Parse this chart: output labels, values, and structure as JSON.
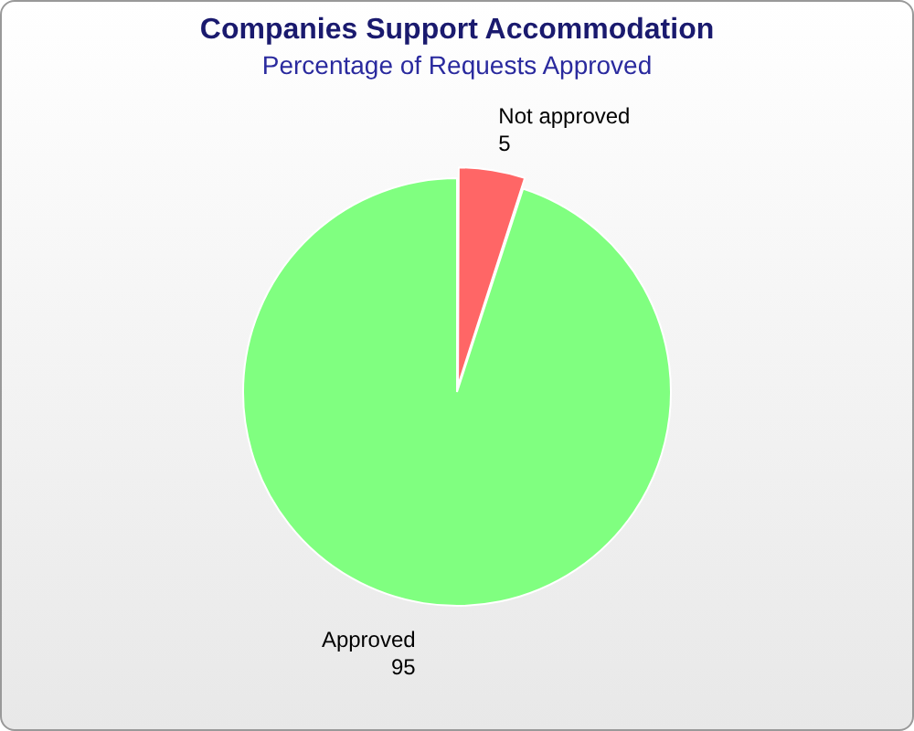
{
  "chart_data": {
    "type": "pie",
    "title": "Companies Support Accommodation",
    "subtitle": "Percentage of Requests Approved",
    "categories": [
      "Not approved",
      "Approved"
    ],
    "values": [
      5,
      95
    ],
    "colors": [
      "#ff6666",
      "#80ff80"
    ],
    "data_labels": true,
    "legend": false
  }
}
